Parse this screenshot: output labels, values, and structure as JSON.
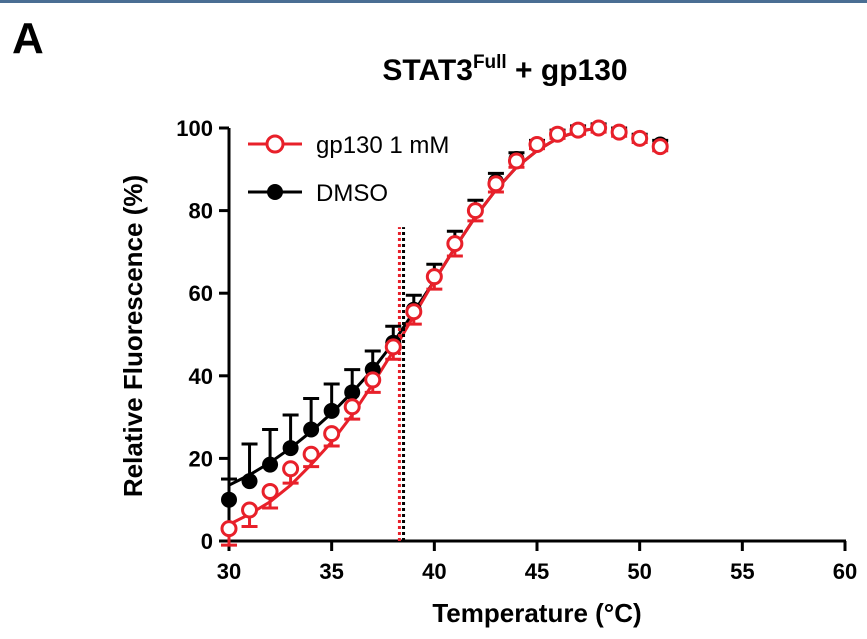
{
  "panel_label": "A",
  "chart_data": {
    "type": "scatter",
    "title": "STAT3",
    "title_superscript": "Full",
    "title_suffix": " + gp130",
    "xlabel": "Temperature (°C)",
    "ylabel": "Relative Fluorescence  (%)",
    "xlim": [
      30,
      60
    ],
    "ylim": [
      0,
      100
    ],
    "xticks": [
      30,
      35,
      40,
      45,
      50,
      55,
      60
    ],
    "yticks": [
      0,
      20,
      40,
      60,
      80,
      100
    ],
    "grid": false,
    "legend_position": "top-left",
    "series": [
      {
        "name": "gp130 1 mM",
        "color": "#e8202a",
        "marker": "open-circle",
        "x": [
          30,
          31,
          32,
          33,
          34,
          35,
          36,
          37,
          38,
          39,
          40,
          41,
          42,
          43,
          44,
          45,
          46,
          47,
          48,
          49,
          50,
          51
        ],
        "y": [
          3,
          7.5,
          12,
          17.5,
          21,
          26,
          32.5,
          39,
          47,
          55.5,
          64,
          72,
          80,
          86.5,
          92,
          96,
          98.5,
          99.5,
          100,
          99,
          97.5,
          95.5
        ],
        "error": [
          4,
          4,
          4,
          3.5,
          3,
          3,
          3,
          3,
          3,
          3,
          3,
          3,
          2.5,
          2,
          1.5,
          1,
          1,
          1,
          1,
          1,
          1,
          1
        ],
        "fit": [
          [
            30,
            4
          ],
          [
            31,
            6.5
          ],
          [
            32,
            9.5
          ],
          [
            33,
            13.5
          ],
          [
            34,
            18.5
          ],
          [
            35,
            24
          ],
          [
            36,
            30.5
          ],
          [
            37,
            38
          ],
          [
            38,
            46
          ],
          [
            39,
            54.5
          ],
          [
            40,
            63
          ],
          [
            41,
            71
          ],
          [
            42,
            78.5
          ],
          [
            43,
            85
          ],
          [
            44,
            90.5
          ],
          [
            45,
            94.5
          ],
          [
            46,
            97.5
          ],
          [
            47,
            99.2
          ],
          [
            48,
            100
          ]
        ],
        "tm": 38.3
      },
      {
        "name": "DMSO",
        "color": "#000000",
        "marker": "filled-circle",
        "x": [
          30,
          31,
          32,
          33,
          34,
          35,
          36,
          37,
          38,
          39,
          40,
          41,
          42,
          43,
          44,
          45,
          46,
          47,
          48,
          49,
          50,
          51
        ],
        "y": [
          10,
          14.5,
          18.5,
          22.5,
          27,
          31.5,
          36,
          41.5,
          48,
          56,
          64,
          72,
          80,
          87,
          92.5,
          96,
          98.5,
          99.5,
          100,
          99,
          97.5,
          96
        ],
        "error": [
          5,
          9,
          8.5,
          8,
          7.5,
          6.5,
          5.5,
          4.5,
          4,
          3.5,
          3,
          3,
          2.5,
          2,
          1.5,
          1,
          1,
          1,
          1,
          1,
          1,
          1
        ],
        "fit": [
          [
            30,
            13.5
          ],
          [
            31,
            16
          ],
          [
            32,
            19
          ],
          [
            33,
            22.5
          ],
          [
            34,
            26.5
          ],
          [
            35,
            31
          ],
          [
            36,
            36
          ],
          [
            37,
            41.5
          ],
          [
            38,
            48
          ],
          [
            39,
            55.5
          ],
          [
            40,
            63
          ],
          [
            41,
            71
          ],
          [
            42,
            78.5
          ],
          [
            43,
            85
          ],
          [
            44,
            90.5
          ],
          [
            45,
            94.5
          ],
          [
            46,
            97.5
          ],
          [
            47,
            99.2
          ],
          [
            48,
            100
          ]
        ],
        "tm": 38.5
      }
    ]
  }
}
